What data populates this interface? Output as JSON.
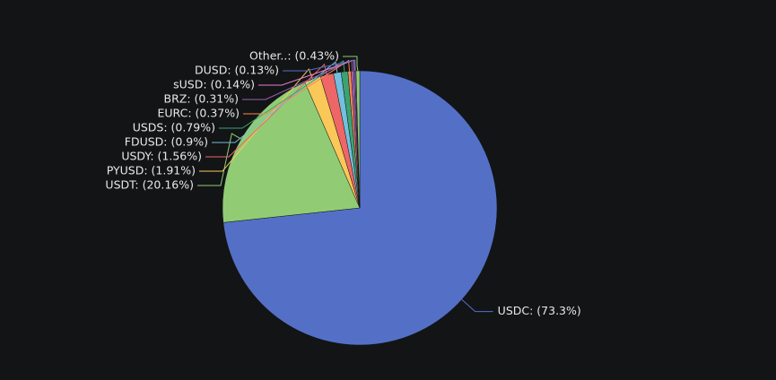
{
  "chart_data": {
    "type": "pie",
    "values": [
      73.3,
      20.16,
      1.91,
      1.56,
      0.9,
      0.79,
      0.37,
      0.31,
      0.14,
      0.13,
      0.43
    ],
    "value_labels": [
      "USDC: (73.3%)",
      "USDT: (20.16%)",
      "PYUSD: (1.91%)",
      "USDY: (1.56%)",
      "FDUSD: (0.9%)",
      "USDS: (0.79%)",
      "EURC: (0.37%)",
      "BRZ: (0.31%)",
      "sUSD: (0.14%)",
      "DUSD: (0.13%)",
      "Other..: (0.43%)"
    ],
    "colors": [
      "#5470c6",
      "#91cc75",
      "#fac858",
      "#ee6666",
      "#73c0de",
      "#3ba272",
      "#fc8452",
      "#9a60b4",
      "#ea7ccc",
      "#5470c6",
      "#91cc75"
    ]
  }
}
